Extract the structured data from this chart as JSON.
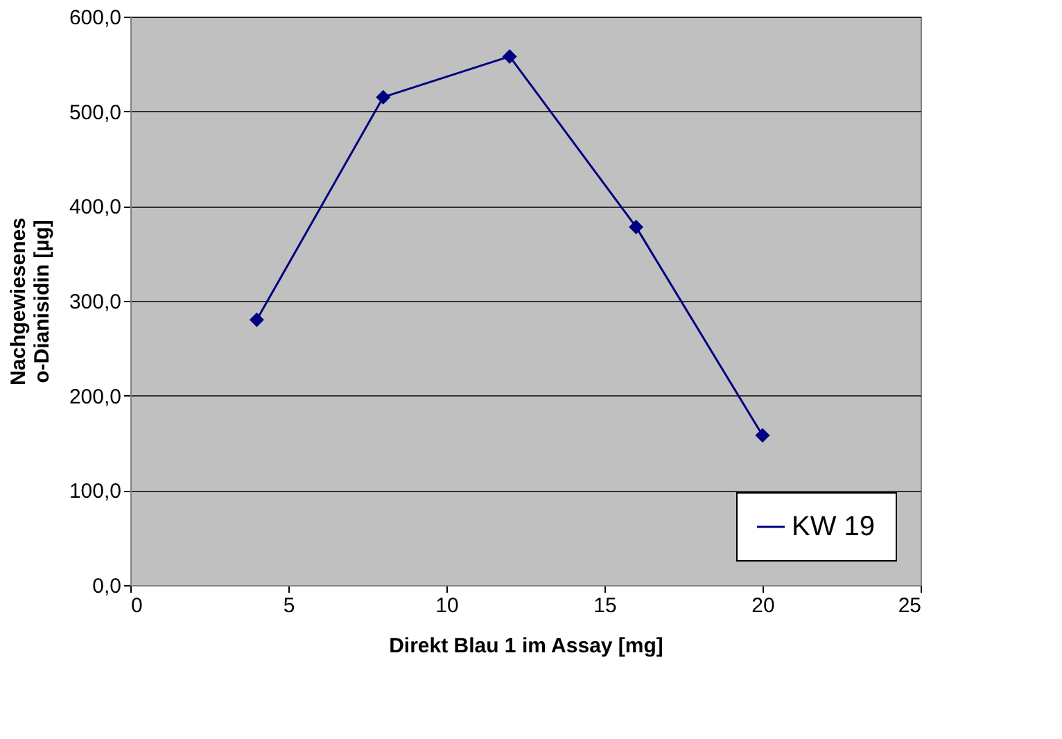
{
  "chart_data": {
    "type": "line",
    "xlabel": "Direkt Blau 1 im Assay [mg]",
    "ylabel": "Nachgewiesenes\no-Dianisidin [µg]",
    "x": [
      4,
      8,
      12,
      16,
      20
    ],
    "series": [
      {
        "name": "KW 19",
        "color": "#000080",
        "values": [
          280,
          515,
          558,
          378,
          158
        ]
      }
    ],
    "xlim": [
      0,
      25
    ],
    "xticks": [
      0,
      5,
      10,
      15,
      20,
      25
    ],
    "ylim": [
      0,
      600
    ],
    "yticks": [
      {
        "value": 0,
        "label": "0,0"
      },
      {
        "value": 100,
        "label": "100,0"
      },
      {
        "value": 200,
        "label": "200,0"
      },
      {
        "value": 300,
        "label": "300,0"
      },
      {
        "value": 400,
        "label": "400,0"
      },
      {
        "value": 500,
        "label": "500,0"
      },
      {
        "value": 600,
        "label": "600,0"
      }
    ],
    "grid": "y",
    "legend": "bottom right",
    "marker": "diamond",
    "line_style": "solid"
  }
}
